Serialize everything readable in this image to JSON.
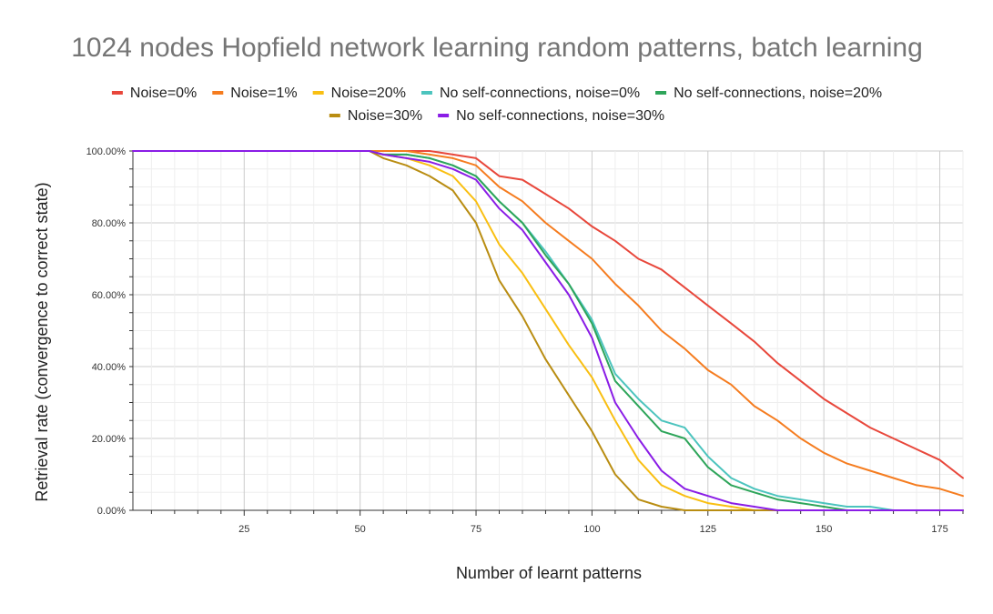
{
  "chart_data": {
    "type": "line",
    "title": "1024 nodes Hopfield network learning random patterns, batch learning",
    "xlabel": "Number of learnt patterns",
    "ylabel": "Retrieval rate (convergence to correct state)",
    "xlim": [
      1,
      180
    ],
    "ylim": [
      0,
      100
    ],
    "x_ticks": [
      25,
      50,
      75,
      100,
      125,
      150,
      175
    ],
    "x_tick_labels": [
      "25",
      "50",
      "75",
      "100",
      "125",
      "150",
      "175"
    ],
    "y_ticks": [
      0,
      20,
      40,
      60,
      80,
      100
    ],
    "y_tick_labels": [
      "0.00%",
      "20.00%",
      "40.00%",
      "60.00%",
      "80.00%",
      "100.00%"
    ],
    "grid": true,
    "legend_position": "top",
    "series": [
      {
        "name": "Noise=0%",
        "color": "#e8473b",
        "points": [
          [
            1,
            100
          ],
          [
            52,
            100
          ],
          [
            60,
            100
          ],
          [
            65,
            100
          ],
          [
            70,
            99
          ],
          [
            75,
            98
          ],
          [
            80,
            93
          ],
          [
            85,
            92
          ],
          [
            90,
            88
          ],
          [
            95,
            84
          ],
          [
            100,
            79
          ],
          [
            105,
            75
          ],
          [
            110,
            70
          ],
          [
            115,
            67
          ],
          [
            120,
            62
          ],
          [
            125,
            57
          ],
          [
            130,
            52
          ],
          [
            135,
            47
          ],
          [
            140,
            41
          ],
          [
            145,
            36
          ],
          [
            150,
            31
          ],
          [
            155,
            27
          ],
          [
            160,
            23
          ],
          [
            165,
            20
          ],
          [
            170,
            17
          ],
          [
            175,
            14
          ],
          [
            180,
            9
          ]
        ]
      },
      {
        "name": "Noise=1%",
        "color": "#f57c1f",
        "points": [
          [
            1,
            100
          ],
          [
            52,
            100
          ],
          [
            60,
            100
          ],
          [
            65,
            99
          ],
          [
            70,
            98
          ],
          [
            75,
            96
          ],
          [
            80,
            90
          ],
          [
            85,
            86
          ],
          [
            90,
            80
          ],
          [
            95,
            75
          ],
          [
            100,
            70
          ],
          [
            105,
            63
          ],
          [
            110,
            57
          ],
          [
            115,
            50
          ],
          [
            120,
            45
          ],
          [
            125,
            39
          ],
          [
            130,
            35
          ],
          [
            135,
            29
          ],
          [
            140,
            25
          ],
          [
            145,
            20
          ],
          [
            150,
            16
          ],
          [
            155,
            13
          ],
          [
            160,
            11
          ],
          [
            165,
            9
          ],
          [
            170,
            7
          ],
          [
            175,
            6
          ],
          [
            180,
            4
          ]
        ]
      },
      {
        "name": "Noise=20%",
        "color": "#f9bf12",
        "points": [
          [
            1,
            100
          ],
          [
            52,
            100
          ],
          [
            55,
            99
          ],
          [
            60,
            98
          ],
          [
            65,
            96
          ],
          [
            70,
            93
          ],
          [
            75,
            86
          ],
          [
            80,
            74
          ],
          [
            85,
            66
          ],
          [
            90,
            56
          ],
          [
            95,
            46
          ],
          [
            100,
            37
          ],
          [
            105,
            25
          ],
          [
            110,
            14
          ],
          [
            115,
            7
          ],
          [
            120,
            4
          ],
          [
            125,
            2
          ],
          [
            130,
            1
          ],
          [
            135,
            0
          ],
          [
            180,
            0
          ]
        ]
      },
      {
        "name": "No self-connections, noise=0%",
        "color": "#4cc4be",
        "points": [
          [
            1,
            100
          ],
          [
            52,
            100
          ],
          [
            55,
            99
          ],
          [
            60,
            99
          ],
          [
            65,
            98
          ],
          [
            70,
            96
          ],
          [
            75,
            93
          ],
          [
            80,
            86
          ],
          [
            85,
            80
          ],
          [
            90,
            72
          ],
          [
            95,
            63
          ],
          [
            100,
            53
          ],
          [
            105,
            38
          ],
          [
            110,
            31
          ],
          [
            115,
            25
          ],
          [
            120,
            23
          ],
          [
            125,
            15
          ],
          [
            130,
            9
          ],
          [
            135,
            6
          ],
          [
            140,
            4
          ],
          [
            145,
            3
          ],
          [
            150,
            2
          ],
          [
            155,
            1
          ],
          [
            160,
            1
          ],
          [
            165,
            0
          ],
          [
            180,
            0
          ]
        ]
      },
      {
        "name": "No self-connections, noise=20%",
        "color": "#2ea55a",
        "points": [
          [
            1,
            100
          ],
          [
            52,
            100
          ],
          [
            55,
            99
          ],
          [
            60,
            99
          ],
          [
            65,
            98
          ],
          [
            70,
            96
          ],
          [
            75,
            93
          ],
          [
            80,
            86
          ],
          [
            85,
            80
          ],
          [
            90,
            71
          ],
          [
            95,
            63
          ],
          [
            100,
            52
          ],
          [
            105,
            36
          ],
          [
            110,
            29
          ],
          [
            115,
            22
          ],
          [
            120,
            20
          ],
          [
            125,
            12
          ],
          [
            130,
            7
          ],
          [
            135,
            5
          ],
          [
            140,
            3
          ],
          [
            145,
            2
          ],
          [
            150,
            1
          ],
          [
            155,
            0
          ],
          [
            180,
            0
          ]
        ]
      },
      {
        "name": "Noise=30%",
        "color": "#b98d12",
        "points": [
          [
            1,
            100
          ],
          [
            52,
            100
          ],
          [
            55,
            98
          ],
          [
            60,
            96
          ],
          [
            65,
            93
          ],
          [
            70,
            89
          ],
          [
            75,
            80
          ],
          [
            80,
            64
          ],
          [
            85,
            54
          ],
          [
            90,
            42
          ],
          [
            95,
            32
          ],
          [
            100,
            22
          ],
          [
            105,
            10
          ],
          [
            110,
            3
          ],
          [
            115,
            1
          ],
          [
            120,
            0
          ],
          [
            180,
            0
          ]
        ]
      },
      {
        "name": "No self-connections, noise=30%",
        "color": "#8a1de6",
        "points": [
          [
            1,
            100
          ],
          [
            52,
            100
          ],
          [
            55,
            99
          ],
          [
            60,
            98
          ],
          [
            65,
            97
          ],
          [
            70,
            95
          ],
          [
            75,
            92
          ],
          [
            80,
            84
          ],
          [
            85,
            78
          ],
          [
            90,
            69
          ],
          [
            95,
            60
          ],
          [
            100,
            48
          ],
          [
            105,
            30
          ],
          [
            110,
            20
          ],
          [
            115,
            11
          ],
          [
            120,
            6
          ],
          [
            125,
            4
          ],
          [
            130,
            2
          ],
          [
            135,
            1
          ],
          [
            140,
            0
          ],
          [
            180,
            0
          ]
        ]
      }
    ]
  }
}
